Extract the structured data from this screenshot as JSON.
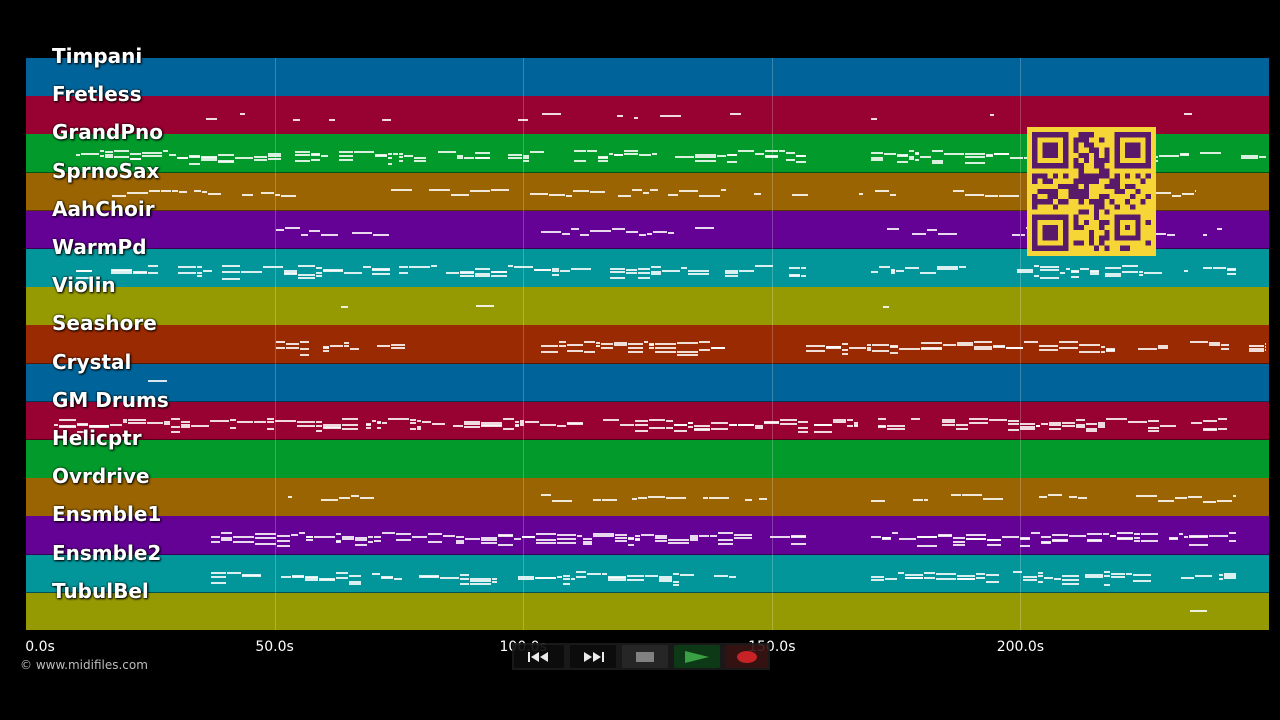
{
  "tracks": [
    {
      "name": "Timpani",
      "color": "#00649a"
    },
    {
      "name": "Fretless",
      "color": "#980232"
    },
    {
      "name": "GrandPno",
      "color": "#029a2b"
    },
    {
      "name": "SprnoSax",
      "color": "#9a6402"
    },
    {
      "name": "AahChoir",
      "color": "#640296"
    },
    {
      "name": "WarmPd",
      "color": "#02969a"
    },
    {
      "name": "Violin",
      "color": "#969a02"
    },
    {
      "name": "Seashore",
      "color": "#9a2a02"
    },
    {
      "name": "Crystal",
      "color": "#00649a"
    },
    {
      "name": "GM Drums",
      "color": "#980232"
    },
    {
      "name": "Helicptr",
      "color": "#029a2b"
    },
    {
      "name": "Ovrdrive",
      "color": "#9a6402"
    },
    {
      "name": "Ensmble1",
      "color": "#640296"
    },
    {
      "name": "Ensmble2",
      "color": "#02969a"
    },
    {
      "name": "TubulBel",
      "color": "#969a02"
    }
  ],
  "time_axis": {
    "ticks": [
      "0.0s",
      "50.0s",
      "100.0s",
      "150.0s",
      "200.0s"
    ],
    "tick_values": [
      0,
      50,
      100,
      150,
      200
    ],
    "max_seconds": 250
  },
  "copyright": "© www.midifiles.com",
  "transport": {
    "buttons": [
      {
        "icon": "rewind-icon"
      },
      {
        "icon": "fast-forward-icon"
      },
      {
        "icon": "stop-icon"
      },
      {
        "icon": "play-icon"
      },
      {
        "icon": "record-icon"
      }
    ]
  },
  "colors": {
    "qr_background": "#f6d637",
    "qr_foreground": "#5a1a6a",
    "background": "#000000"
  }
}
